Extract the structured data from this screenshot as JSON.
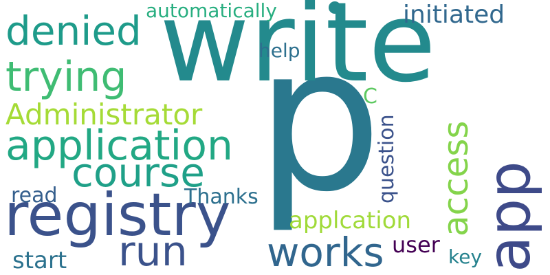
{
  "words": [
    {
      "text": "p",
      "color": "#2a788e",
      "vertical": false
    },
    {
      "text": "write",
      "color": "#238a8d",
      "vertical": false
    },
    {
      "text": "registry",
      "color": "#3b528b",
      "vertical": false
    },
    {
      "text": "application",
      "color": "#22a884",
      "vertical": false
    },
    {
      "text": "app",
      "color": "#3e4a89",
      "vertical": true
    },
    {
      "text": "course",
      "color": "#1fa088",
      "vertical": false
    },
    {
      "text": "trying",
      "color": "#3fbc73",
      "vertical": false
    },
    {
      "text": "denied",
      "color": "#1e9b8a",
      "vertical": false
    },
    {
      "text": "works",
      "color": "#31668e",
      "vertical": false
    },
    {
      "text": "access",
      "color": "#84d44b",
      "vertical": true
    },
    {
      "text": "Administrator",
      "color": "#a5db36",
      "vertical": false
    },
    {
      "text": "run",
      "color": "#3b528b",
      "vertical": false
    },
    {
      "text": "initiated",
      "color": "#31688e",
      "vertical": false
    },
    {
      "text": "applcation",
      "color": "#a0da39",
      "vertical": false
    },
    {
      "text": "automatically",
      "color": "#28ae80",
      "vertical": false
    },
    {
      "text": "question",
      "color": "#3b528b",
      "vertical": true
    },
    {
      "text": "Thanks",
      "color": "#2d708e",
      "vertical": false
    },
    {
      "text": "start",
      "color": "#2c728e",
      "vertical": false
    },
    {
      "text": "read",
      "color": "#355f8d",
      "vertical": false
    },
    {
      "text": "user",
      "color": "#440154",
      "vertical": false
    },
    {
      "text": "help",
      "color": "#2d708e",
      "vertical": false
    },
    {
      "text": "key",
      "color": "#26828e",
      "vertical": false
    },
    {
      "text": "C",
      "color": "#5ec962",
      "vertical": false
    }
  ]
}
